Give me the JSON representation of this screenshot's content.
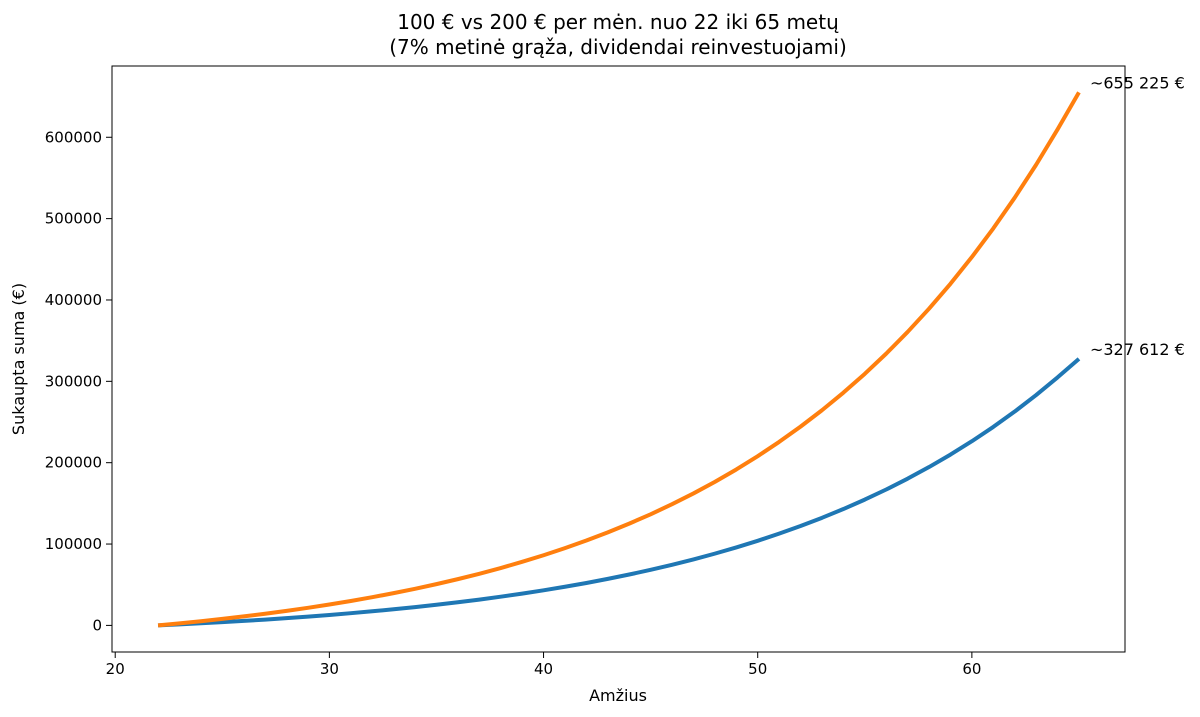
{
  "chart_data": {
    "type": "line",
    "title_lines": [
      "100 € vs 200 € per mėn. nuo 22 iki 65 metų",
      "(7% metinė grąža, dividendai reinvestuojami)"
    ],
    "xlabel": "Amžius",
    "ylabel": "Sukaupta suma (€)",
    "xlim": [
      19.85,
      67.15
    ],
    "ylim": [
      -32700,
      687600
    ],
    "xticks": [
      20,
      30,
      40,
      50,
      60
    ],
    "xtick_labels": [
      "20",
      "30",
      "40",
      "50",
      "60"
    ],
    "yticks": [
      0,
      100000,
      200000,
      300000,
      400000,
      500000,
      600000
    ],
    "ytick_labels": [
      "0",
      "100000",
      "200000",
      "300000",
      "400000",
      "500000",
      "600000"
    ],
    "grid": false,
    "x": [
      22,
      23,
      24,
      25,
      26,
      27,
      28,
      29,
      30,
      31,
      32,
      33,
      34,
      35,
      36,
      37,
      38,
      39,
      40,
      41,
      42,
      43,
      44,
      45,
      46,
      47,
      48,
      49,
      50,
      51,
      52,
      53,
      54,
      55,
      56,
      57,
      58,
      59,
      60,
      61,
      62,
      63,
      64,
      65
    ],
    "series": [
      {
        "color": "#1f77b4",
        "values": [
          0,
          1241,
          2571,
          3998,
          5528,
          7168,
          8927,
          10813,
          12835,
          15004,
          17329,
          19823,
          22496,
          25363,
          28437,
          31734,
          35268,
          39058,
          43123,
          47481,
          52155,
          57166,
          62540,
          68302,
          74481,
          81107,
          88212,
          95830,
          104000,
          112760,
          122150,
          132230,
          143030,
          154620,
          167040,
          180360,
          194640,
          209950,
          226370,
          243980,
          262860,
          283110,
          304820,
          327612
        ],
        "end_label": "~327 612 €"
      },
      {
        "color": "#ff7f0e",
        "values": [
          0,
          2482,
          5143,
          7996,
          11056,
          14337,
          17855,
          21627,
          25671,
          30008,
          34658,
          39645,
          44992,
          50725,
          56874,
          63467,
          70536,
          78116,
          86245,
          94961,
          104310,
          114330,
          125080,
          136600,
          148960,
          162210,
          176420,
          191660,
          208000,
          225520,
          244310,
          264450,
          286060,
          309230,
          334080,
          360720,
          389280,
          419910,
          452750,
          487970,
          525720,
          566210,
          609630,
          655225
        ],
        "end_label": "~655 225 €"
      }
    ]
  }
}
